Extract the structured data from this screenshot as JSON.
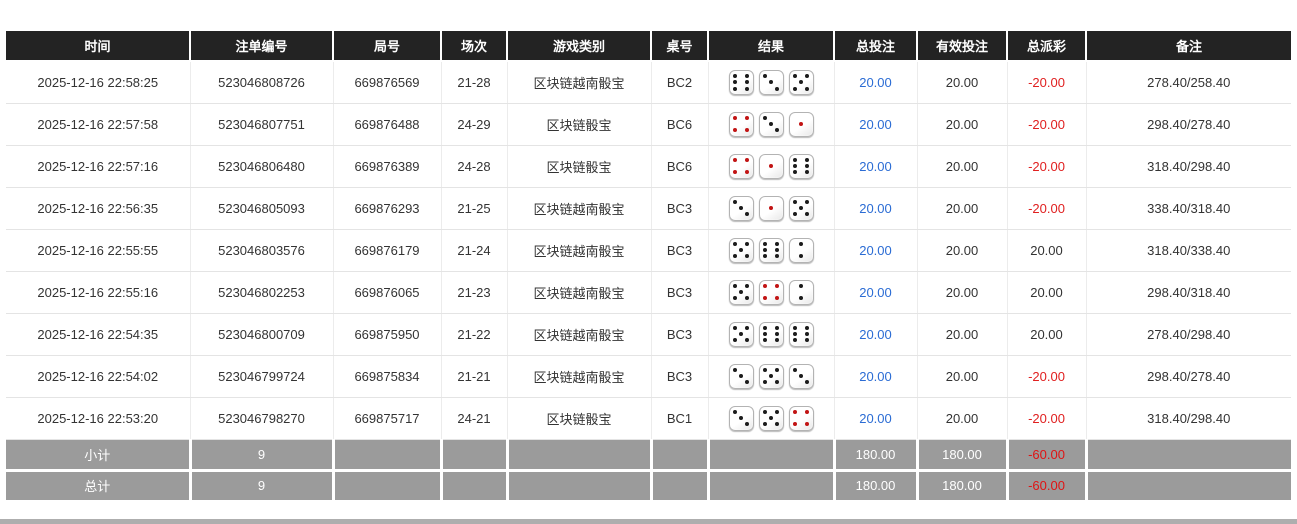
{
  "colors": {
    "header_bg": "#232323",
    "footer_bg": "#9b9b9b",
    "bet_amount_blue": "#2b6cd4",
    "negative_red": "#e02020",
    "dice_pip_black": "#1b1b1b",
    "dice_pip_red": "#c21414"
  },
  "table": {
    "headers": [
      "时间",
      "注单编号",
      "局号",
      "场次",
      "游戏类别",
      "桌号",
      "结果",
      "总投注",
      "有效投注",
      "总派彩",
      "备注"
    ],
    "rows": [
      {
        "time": "2025-12-16 22:58:25",
        "bet_id": "523046808726",
        "round": "669876569",
        "session": "21-28",
        "game": "区块链越南骰宝",
        "table": "BC2",
        "dice": [
          6,
          3,
          5
        ],
        "total_bet": "20.00",
        "valid_bet": "20.00",
        "payout": "-20.00",
        "remark": "278.40/258.40"
      },
      {
        "time": "2025-12-16 22:57:58",
        "bet_id": "523046807751",
        "round": "669876488",
        "session": "24-29",
        "game": "区块链骰宝",
        "table": "BC6",
        "dice": [
          4,
          3,
          1
        ],
        "total_bet": "20.00",
        "valid_bet": "20.00",
        "payout": "-20.00",
        "remark": "298.40/278.40"
      },
      {
        "time": "2025-12-16 22:57:16",
        "bet_id": "523046806480",
        "round": "669876389",
        "session": "24-28",
        "game": "区块链骰宝",
        "table": "BC6",
        "dice": [
          4,
          1,
          6
        ],
        "total_bet": "20.00",
        "valid_bet": "20.00",
        "payout": "-20.00",
        "remark": "318.40/298.40"
      },
      {
        "time": "2025-12-16 22:56:35",
        "bet_id": "523046805093",
        "round": "669876293",
        "session": "21-25",
        "game": "区块链越南骰宝",
        "table": "BC3",
        "dice": [
          3,
          1,
          5
        ],
        "total_bet": "20.00",
        "valid_bet": "20.00",
        "payout": "-20.00",
        "remark": "338.40/318.40"
      },
      {
        "time": "2025-12-16 22:55:55",
        "bet_id": "523046803576",
        "round": "669876179",
        "session": "21-24",
        "game": "区块链越南骰宝",
        "table": "BC3",
        "dice": [
          5,
          6,
          2
        ],
        "total_bet": "20.00",
        "valid_bet": "20.00",
        "payout": "20.00",
        "remark": "318.40/338.40"
      },
      {
        "time": "2025-12-16 22:55:16",
        "bet_id": "523046802253",
        "round": "669876065",
        "session": "21-23",
        "game": "区块链越南骰宝",
        "table": "BC3",
        "dice": [
          5,
          4,
          2
        ],
        "total_bet": "20.00",
        "valid_bet": "20.00",
        "payout": "20.00",
        "remark": "298.40/318.40"
      },
      {
        "time": "2025-12-16 22:54:35",
        "bet_id": "523046800709",
        "round": "669875950",
        "session": "21-22",
        "game": "区块链越南骰宝",
        "table": "BC3",
        "dice": [
          5,
          6,
          6
        ],
        "total_bet": "20.00",
        "valid_bet": "20.00",
        "payout": "20.00",
        "remark": "278.40/298.40"
      },
      {
        "time": "2025-12-16 22:54:02",
        "bet_id": "523046799724",
        "round": "669875834",
        "session": "21-21",
        "game": "区块链越南骰宝",
        "table": "BC3",
        "dice": [
          3,
          5,
          3
        ],
        "total_bet": "20.00",
        "valid_bet": "20.00",
        "payout": "-20.00",
        "remark": "298.40/278.40"
      },
      {
        "time": "2025-12-16 22:53:20",
        "bet_id": "523046798270",
        "round": "669875717",
        "session": "24-21",
        "game": "区块链骰宝",
        "table": "BC1",
        "dice": [
          3,
          5,
          4
        ],
        "total_bet": "20.00",
        "valid_bet": "20.00",
        "payout": "-20.00",
        "remark": "318.40/298.40"
      }
    ],
    "subtotal": {
      "label": "小计",
      "count": "9",
      "total_bet": "180.00",
      "valid_bet": "180.00",
      "payout": "-60.00"
    },
    "total": {
      "label": "总计",
      "count": "9",
      "total_bet": "180.00",
      "valid_bet": "180.00",
      "payout": "-60.00"
    }
  }
}
